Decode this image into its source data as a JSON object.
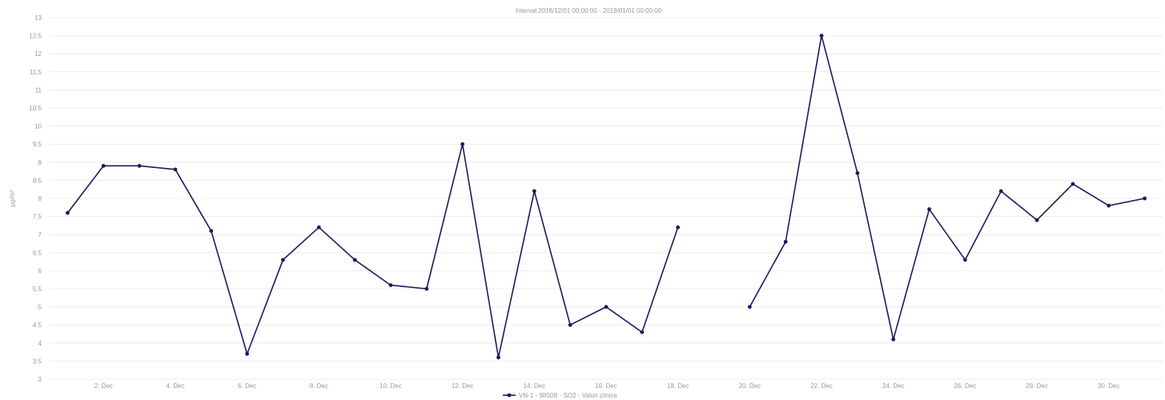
{
  "chart_data": {
    "type": "line",
    "title": "Interval:2018/12/01 00:00:00 - 2019/01/01 00:00:00",
    "xlabel": "",
    "ylabel": "µg/m³",
    "ylim": [
      3,
      13
    ],
    "xlim": [
      0.5,
      31.5
    ],
    "grid": "horizontal",
    "legend_position": "bottom-center",
    "y_ticks": [
      3,
      3.5,
      4,
      4.5,
      5,
      5.5,
      6,
      6.5,
      7,
      7.5,
      8,
      8.5,
      9,
      9.5,
      10,
      10.5,
      11,
      11.5,
      12,
      12.5,
      13
    ],
    "y_tick_labels": [
      "3",
      "3.5",
      "4",
      "4.5",
      "5",
      "5.5",
      "6",
      "6.5",
      "7",
      "7.5",
      "8",
      "8.5",
      "9",
      "9.5",
      "10",
      "10.5",
      "11",
      "11.5",
      "12",
      "12.5",
      "13"
    ],
    "x_ticks": [
      2,
      4,
      6,
      8,
      10,
      12,
      14,
      16,
      18,
      20,
      22,
      24,
      26,
      28,
      30
    ],
    "x_tick_labels": [
      "2. Dec",
      "4. Dec",
      "6. Dec",
      "8. Dec",
      "10. Dec",
      "12. Dec",
      "14. Dec",
      "16. Dec",
      "18. Dec",
      "20. Dec",
      "22. Dec",
      "24. Dec",
      "26. Dec",
      "28. Dec",
      "30. Dec"
    ],
    "series": [
      {
        "name": "VN-1 - 9850B - SO2 - Valori zilnice",
        "color": "#1a1a5e",
        "x": [
          1,
          2,
          3,
          4,
          5,
          6,
          7,
          8,
          9,
          10,
          11,
          12,
          13,
          14,
          15,
          16,
          17,
          18,
          19,
          20,
          21,
          22,
          23,
          24,
          25,
          26,
          27,
          28,
          29,
          30,
          31
        ],
        "y": [
          7.6,
          8.9,
          8.9,
          8.8,
          7.1,
          3.7,
          6.3,
          7.2,
          6.3,
          5.6,
          5.5,
          9.5,
          3.6,
          8.2,
          4.5,
          5.0,
          4.3,
          7.2,
          null,
          5.0,
          6.8,
          12.5,
          8.7,
          4.1,
          7.7,
          6.3,
          8.2,
          7.4,
          8.4,
          7.8,
          8.0
        ]
      }
    ]
  }
}
